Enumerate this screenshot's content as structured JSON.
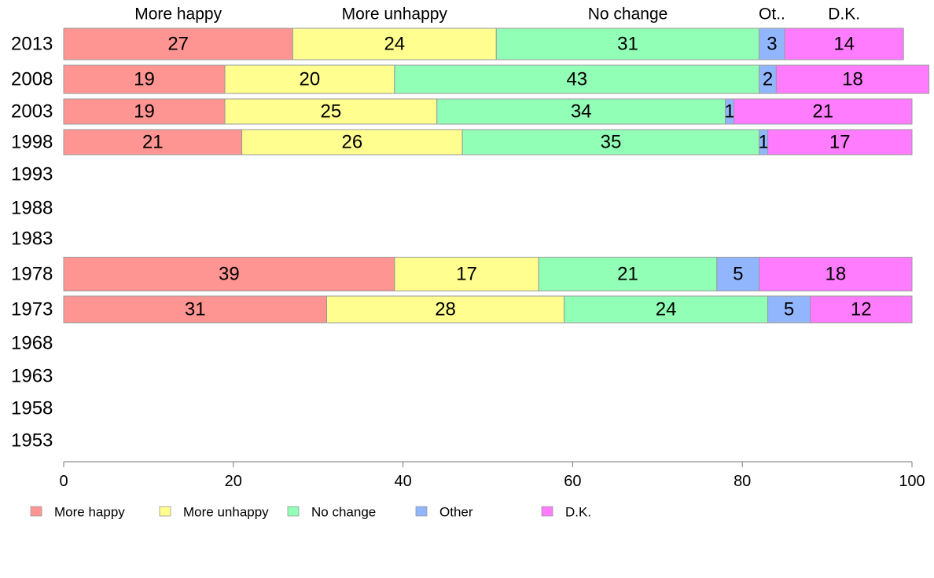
{
  "chart_data": {
    "type": "bar",
    "orientation": "horizontal",
    "stacked": true,
    "categories": [
      "2013",
      "2008",
      "2003",
      "1998",
      "1993",
      "1988",
      "1983",
      "1978",
      "1973",
      "1968",
      "1963",
      "1958",
      "1953"
    ],
    "series": [
      {
        "name": "More happy",
        "header": "More happy",
        "color": "#ff9592",
        "values": [
          27,
          19,
          19,
          21,
          null,
          null,
          null,
          39,
          31,
          null,
          null,
          null,
          null
        ]
      },
      {
        "name": "More unhappy",
        "header": "More unhappy",
        "color": "#fffe8f",
        "values": [
          24,
          20,
          25,
          26,
          null,
          null,
          null,
          17,
          28,
          null,
          null,
          null,
          null
        ]
      },
      {
        "name": "No change",
        "header": "No change",
        "color": "#91ffb5",
        "values": [
          31,
          43,
          34,
          35,
          null,
          null,
          null,
          21,
          24,
          null,
          null,
          null,
          null
        ]
      },
      {
        "name": "Other",
        "header": "Ot..",
        "color": "#92b6fe",
        "values": [
          3,
          2,
          1,
          1,
          null,
          null,
          null,
          5,
          5,
          null,
          null,
          null,
          null
        ]
      },
      {
        "name": "D.K.",
        "header": "D.K.",
        "color": "#ff7bff",
        "values": [
          14,
          18,
          21,
          17,
          null,
          null,
          null,
          18,
          12,
          null,
          null,
          null,
          null
        ]
      }
    ],
    "xlim": [
      0,
      100
    ],
    "xticks": [
      0,
      20,
      40,
      60,
      80,
      100
    ],
    "legend_position": "bottom",
    "grid": false
  }
}
